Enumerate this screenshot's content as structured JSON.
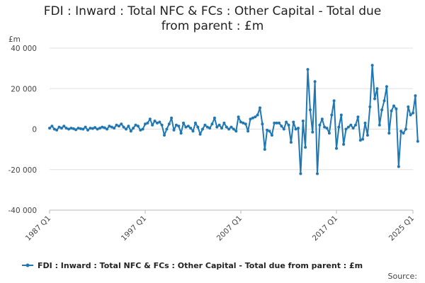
{
  "chart_data": {
    "type": "line",
    "title": "FDI : Inward : Total NFC & FCs : Other Capital - Total due from parent : £m",
    "ylabel": "£m",
    "xlabel": "",
    "ylim": [
      -40000,
      40000
    ],
    "y_ticks": [
      -40000,
      -20000,
      0,
      20000,
      40000
    ],
    "y_tick_labels": [
      "-40 000",
      "-20 000",
      "0",
      "20 000",
      "40 000"
    ],
    "x_ticks": [
      "1987 Q1",
      "1997 Q1",
      "2007 Q1",
      "2017 Q1",
      "2025 Q1"
    ],
    "x_range": [
      "1987 Q1",
      "2025 Q1"
    ],
    "grid": true,
    "legend_position": "bottom",
    "source_label": "Source:",
    "series": [
      {
        "name": "FDI : Inward : Total NFC & FCs : Other Capital - Total due from parent : £m",
        "color": "#1f77b4",
        "start": "1987 Q1",
        "values": [
          500,
          1500,
          0,
          -500,
          1000,
          500,
          1500,
          500,
          0,
          500,
          200,
          -300,
          500,
          200,
          0,
          1000,
          -500,
          500,
          300,
          800,
          0,
          500,
          1000,
          700,
          0,
          1500,
          1000,
          500,
          2000,
          1500,
          2500,
          1000,
          0,
          1500,
          -1000,
          500,
          2000,
          1500,
          -500,
          0,
          2500,
          3000,
          5000,
          2000,
          4000,
          3000,
          3500,
          2000,
          -3000,
          0,
          2500,
          5500,
          -500,
          2000,
          1500,
          -2000,
          3000,
          1000,
          1500,
          500,
          -1000,
          3000,
          1000,
          -2500,
          0,
          2000,
          1000,
          500,
          2500,
          5500,
          1000,
          2000,
          500,
          3000,
          1000,
          0,
          1000,
          0,
          -1000,
          6000,
          3500,
          3000,
          2500,
          -1000,
          5000,
          5500,
          6000,
          7000,
          10500,
          2500,
          -10000,
          -500,
          -1000,
          -3000,
          3000,
          3000,
          3000,
          1500,
          0,
          3500,
          2000,
          -6500,
          3500,
          0,
          500,
          -22000,
          4000,
          -9000,
          29500,
          9500,
          -1500,
          23500,
          -22000,
          2000,
          5000,
          1000,
          500,
          -2000,
          7000,
          14000,
          -9500,
          1000,
          7000,
          -7500,
          0,
          1000,
          2000,
          500,
          2000,
          6000,
          -5500,
          -5000,
          3000,
          -3000,
          11000,
          31500,
          15000,
          20000,
          2000,
          9500,
          14000,
          21000,
          -2000,
          9000,
          11500,
          10000,
          -18500,
          -1000,
          -2000,
          0,
          11000,
          7000,
          8000,
          16500,
          -6000
        ]
      }
    ]
  }
}
